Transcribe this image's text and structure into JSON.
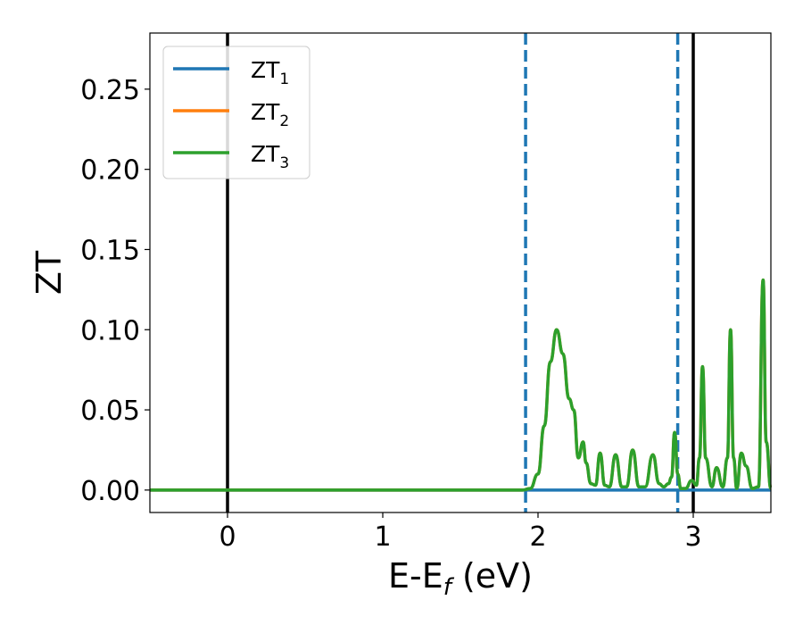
{
  "chart_data": {
    "type": "line",
    "xlabel": "E-E",
    "xlabel_sub": "f",
    "xlabel_unit": "(eV)",
    "ylabel": "ZT",
    "xlim": [
      -0.5,
      3.5
    ],
    "ylim": [
      -0.014,
      0.285
    ],
    "xticks": [
      0,
      1,
      2,
      3
    ],
    "xtick_labels": [
      "0",
      "1",
      "2",
      "3"
    ],
    "yticks": [
      0.0,
      0.05,
      0.1,
      0.15,
      0.2,
      0.25
    ],
    "ytick_labels": [
      "0.00",
      "0.05",
      "0.10",
      "0.15",
      "0.20",
      "0.25"
    ],
    "grid": false,
    "legend_position": "top-left",
    "series": [
      {
        "name": "ZT",
        "sub": "1",
        "color": "#1f77b4",
        "x": [
          -0.5,
          3.5
        ],
        "y": [
          0.0,
          0.0
        ]
      },
      {
        "name": "ZT",
        "sub": "2",
        "color": "#ff7f0e",
        "x": [
          -0.5,
          1.9,
          1.95,
          2.0,
          2.04,
          2.08,
          2.12,
          2.16,
          2.2,
          2.23,
          2.26,
          2.29,
          2.31,
          2.34,
          2.37,
          2.4,
          2.43,
          2.46,
          2.5,
          2.54,
          2.57,
          2.61,
          2.65,
          2.69,
          2.74,
          2.78,
          2.81,
          2.84,
          2.86,
          2.88,
          2.9,
          2.92,
          2.95,
          2.99,
          3.02,
          3.04,
          3.06,
          3.08,
          3.12,
          3.15,
          3.19,
          3.22,
          3.24,
          3.26,
          3.28,
          3.31,
          3.34,
          3.38,
          3.42,
          3.45,
          3.47,
          3.5
        ],
        "y": [
          0.0,
          0.0,
          0.001,
          0.01,
          0.04,
          0.08,
          0.1,
          0.085,
          0.057,
          0.05,
          0.02,
          0.03,
          0.017,
          0.004,
          0.003,
          0.023,
          0.003,
          0.002,
          0.022,
          0.002,
          0.002,
          0.025,
          0.002,
          0.002,
          0.022,
          0.004,
          0.002,
          0.004,
          0.008,
          0.036,
          0.01,
          0.001,
          0.001,
          0.006,
          0.003,
          0.02,
          0.077,
          0.02,
          0.002,
          0.014,
          0.002,
          0.02,
          0.1,
          0.02,
          0.001,
          0.023,
          0.015,
          0.001,
          0.002,
          0.131,
          0.03,
          0.001
        ]
      },
      {
        "name": "ZT",
        "sub": "3",
        "color": "#2ca02c",
        "x": [
          -0.5,
          1.9,
          1.95,
          2.0,
          2.04,
          2.08,
          2.12,
          2.16,
          2.2,
          2.23,
          2.26,
          2.29,
          2.31,
          2.34,
          2.37,
          2.4,
          2.43,
          2.46,
          2.5,
          2.54,
          2.57,
          2.61,
          2.65,
          2.69,
          2.74,
          2.78,
          2.81,
          2.84,
          2.86,
          2.88,
          2.9,
          2.92,
          2.95,
          2.99,
          3.02,
          3.04,
          3.06,
          3.08,
          3.12,
          3.15,
          3.19,
          3.22,
          3.24,
          3.26,
          3.28,
          3.31,
          3.34,
          3.38,
          3.42,
          3.45,
          3.47,
          3.5
        ],
        "y": [
          0.0,
          0.0,
          0.001,
          0.01,
          0.04,
          0.08,
          0.1,
          0.085,
          0.057,
          0.05,
          0.02,
          0.03,
          0.017,
          0.004,
          0.003,
          0.023,
          0.003,
          0.002,
          0.022,
          0.002,
          0.002,
          0.025,
          0.002,
          0.002,
          0.022,
          0.004,
          0.002,
          0.004,
          0.008,
          0.036,
          0.01,
          0.001,
          0.001,
          0.006,
          0.003,
          0.02,
          0.077,
          0.02,
          0.002,
          0.014,
          0.002,
          0.02,
          0.1,
          0.02,
          0.001,
          0.023,
          0.015,
          0.001,
          0.002,
          0.131,
          0.03,
          0.001
        ]
      }
    ],
    "vlines": [
      {
        "x": 0.0,
        "color": "#000000",
        "style": "solid"
      },
      {
        "x": 3.0,
        "color": "#000000",
        "style": "solid"
      },
      {
        "x": 1.92,
        "color": "#1f77b4",
        "style": "dashed"
      },
      {
        "x": 2.9,
        "color": "#1f77b4",
        "style": "dashed"
      }
    ]
  }
}
